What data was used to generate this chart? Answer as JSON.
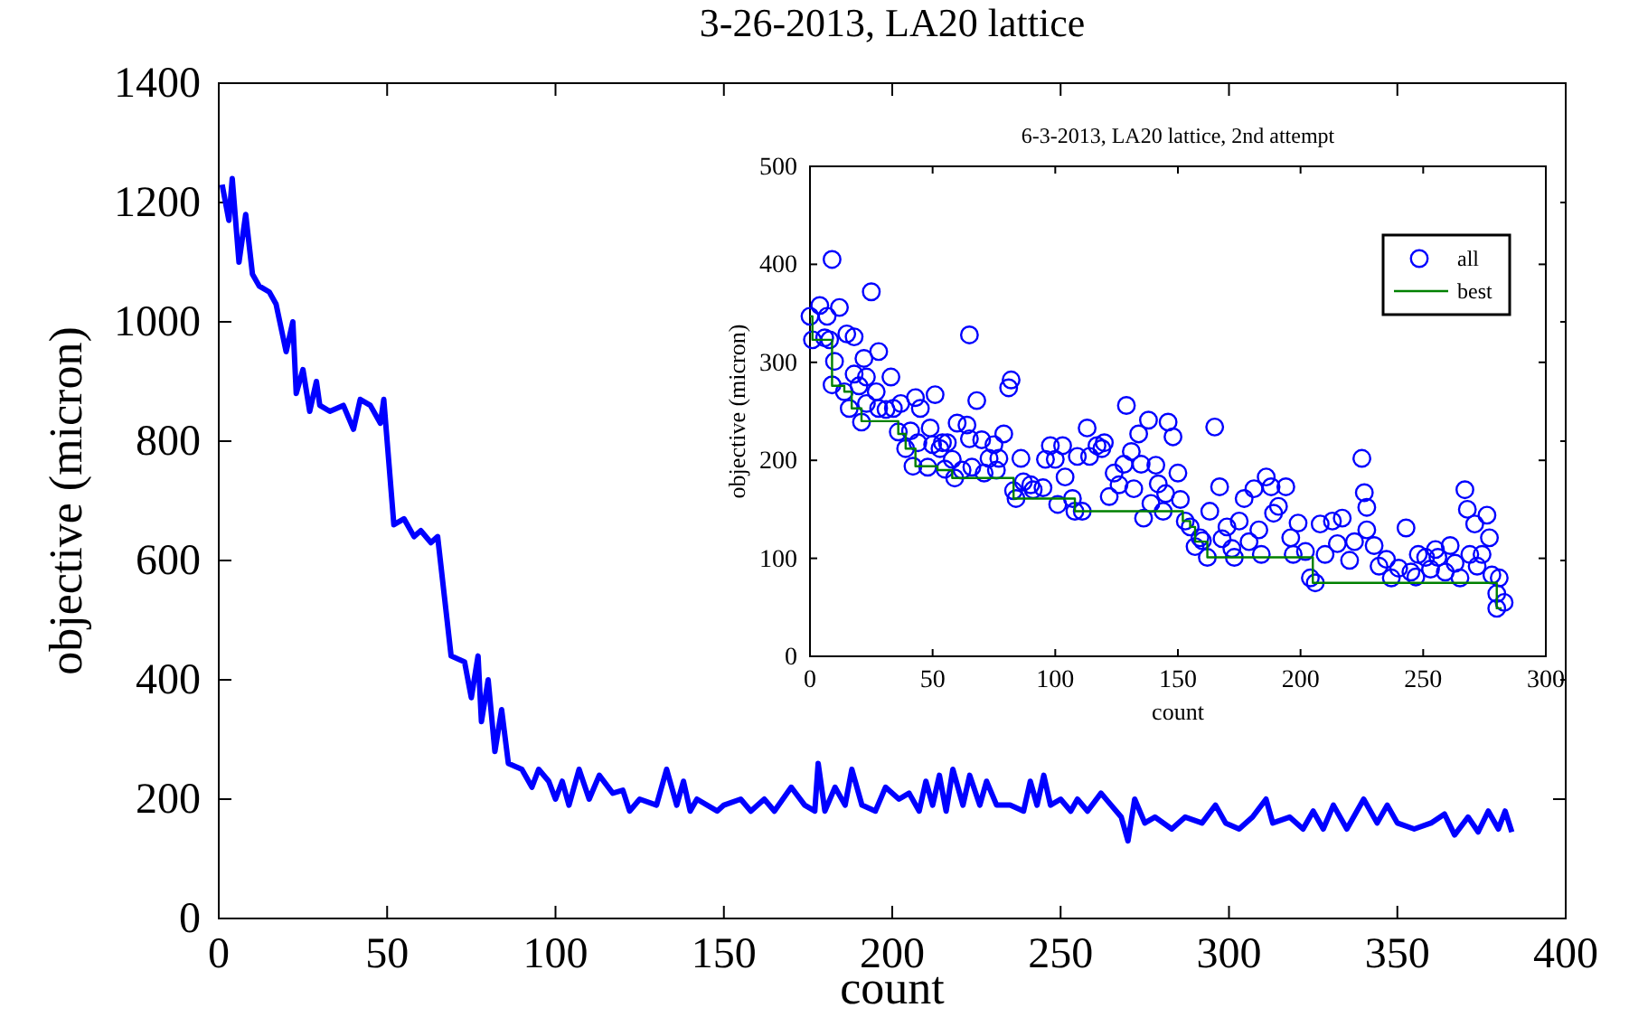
{
  "chart_data": [
    {
      "type": "line",
      "title": "3-26-2013, LA20 lattice",
      "xlabel": "count",
      "ylabel": "objective (micron)",
      "xlim": [
        0,
        400
      ],
      "ylim": [
        0,
        1400
      ],
      "xticks": [
        0,
        50,
        100,
        150,
        200,
        250,
        300,
        350,
        400
      ],
      "yticks": [
        0,
        200,
        400,
        600,
        800,
        1000,
        1200,
        1400
      ],
      "grid": false,
      "legend": false,
      "series": [
        {
          "color": "#0000ff",
          "x": [
            1,
            3,
            4,
            6,
            8,
            10,
            12,
            15,
            17,
            20,
            22,
            23,
            25,
            27,
            29,
            30,
            33,
            37,
            40,
            42,
            45,
            48,
            49,
            50,
            52,
            55,
            58,
            60,
            63,
            65,
            67,
            69,
            73,
            75,
            77,
            78,
            80,
            82,
            84,
            86,
            90,
            93,
            95,
            98,
            100,
            102,
            104,
            107,
            110,
            113,
            117,
            120,
            122,
            125,
            130,
            133,
            136,
            138,
            140,
            142,
            148,
            150,
            155,
            158,
            162,
            165,
            170,
            174,
            177,
            178,
            180,
            183,
            186,
            188,
            191,
            195,
            198,
            202,
            205,
            208,
            210,
            212,
            214,
            216,
            218,
            221,
            223,
            226,
            228,
            231,
            235,
            239,
            241,
            243,
            245,
            247,
            250,
            253,
            255,
            258,
            262,
            265,
            268,
            270,
            272,
            275,
            278,
            283,
            287,
            292,
            296,
            299,
            303,
            307,
            311,
            313,
            318,
            322,
            325,
            328,
            331,
            335,
            340,
            344,
            347,
            350,
            355,
            360,
            364,
            367,
            371,
            374,
            377,
            380,
            382,
            384
          ],
          "values": [
            1230,
            1170,
            1240,
            1100,
            1180,
            1080,
            1060,
            1050,
            1030,
            950,
            1000,
            880,
            920,
            850,
            900,
            860,
            850,
            860,
            820,
            870,
            860,
            830,
            870,
            800,
            660,
            670,
            640,
            650,
            630,
            640,
            540,
            440,
            430,
            370,
            440,
            330,
            400,
            280,
            350,
            260,
            250,
            220,
            250,
            230,
            200,
            230,
            190,
            250,
            200,
            240,
            210,
            215,
            180,
            200,
            190,
            250,
            190,
            230,
            180,
            200,
            180,
            190,
            200,
            180,
            200,
            180,
            220,
            190,
            180,
            260,
            180,
            220,
            190,
            250,
            190,
            180,
            220,
            200,
            210,
            180,
            230,
            190,
            240,
            180,
            250,
            190,
            240,
            190,
            230,
            190,
            190,
            180,
            230,
            190,
            240,
            190,
            200,
            180,
            200,
            180,
            210,
            190,
            170,
            130,
            200,
            160,
            170,
            150,
            170,
            160,
            190,
            160,
            150,
            170,
            200,
            160,
            170,
            150,
            180,
            150,
            190,
            150,
            200,
            160,
            190,
            160,
            150,
            160,
            175,
            140,
            170,
            145,
            180,
            150,
            180,
            145
          ]
        }
      ]
    },
    {
      "type": "scatter",
      "title": "6-3-2013, LA20 lattice, 2nd attempt",
      "xlabel": "count",
      "ylabel": "objective (micron)",
      "xlim": [
        0,
        300
      ],
      "ylim": [
        0,
        500
      ],
      "xticks": [
        0,
        50,
        100,
        150,
        200,
        250,
        300
      ],
      "yticks": [
        0,
        100,
        200,
        300,
        400,
        500
      ],
      "grid": false,
      "legend": "top right",
      "series": [
        {
          "name": "all",
          "marker": "circle",
          "color": "#0000ff",
          "x": [
            0,
            1,
            4,
            6,
            7,
            8,
            9,
            9,
            10,
            12,
            14,
            15,
            16,
            18,
            18,
            20,
            21,
            22,
            23,
            23,
            25,
            27,
            28,
            28,
            31,
            33,
            34,
            36,
            37,
            39,
            41,
            42,
            43,
            44,
            45,
            48,
            49,
            50,
            51,
            53,
            54,
            55,
            56,
            58,
            59,
            60,
            62,
            64,
            65,
            65,
            66,
            68,
            70,
            71,
            73,
            75,
            76,
            77,
            79,
            81,
            82,
            83,
            84,
            86,
            87,
            90,
            91,
            95,
            96,
            98,
            100,
            101,
            103,
            104,
            107,
            108,
            109,
            111,
            113,
            114,
            117,
            119,
            120,
            122,
            124,
            126,
            128,
            129,
            131,
            132,
            134,
            135,
            136,
            138,
            139,
            141,
            142,
            144,
            145,
            146,
            148,
            150,
            151,
            153,
            155,
            157,
            159,
            160,
            162,
            163,
            165,
            167,
            168,
            170,
            172,
            173,
            175,
            177,
            179,
            181,
            183,
            184,
            186,
            188,
            189,
            191,
            194,
            196,
            197,
            199,
            202,
            204,
            206,
            208,
            210,
            213,
            215,
            217,
            220,
            222,
            225,
            226,
            227,
            227,
            230,
            232,
            235,
            237,
            240,
            243,
            245,
            247,
            248,
            251,
            253,
            255,
            256,
            259,
            261,
            263,
            265,
            267,
            268,
            269,
            271,
            272,
            274,
            276,
            277,
            278,
            280,
            280,
            281,
            283
          ],
          "values": [
            347,
            323,
            358,
            325,
            347,
            323,
            405,
            277,
            301,
            356,
            270,
            329,
            253,
            326,
            288,
            276,
            239,
            304,
            285,
            258,
            372,
            270,
            311,
            253,
            252,
            285,
            253,
            229,
            258,
            212,
            230,
            194,
            264,
            218,
            253,
            193,
            233,
            216,
            267,
            212,
            218,
            191,
            218,
            201,
            182,
            238,
            190,
            236,
            222,
            328,
            193,
            261,
            221,
            187,
            202,
            216,
            190,
            202,
            227,
            274,
            282,
            169,
            161,
            202,
            178,
            175,
            170,
            172,
            201,
            215,
            201,
            155,
            215,
            183,
            161,
            148,
            204,
            148,
            233,
            204,
            215,
            212,
            218,
            163,
            187,
            175,
            196,
            256,
            209,
            171,
            227,
            196,
            141,
            241,
            156,
            195,
            176,
            148,
            166,
            239,
            224,
            187,
            160,
            138,
            132,
            112,
            121,
            118,
            101,
            148,
            234,
            173,
            120,
            132,
            110,
            101,
            138,
            161,
            117,
            171,
            129,
            104,
            183,
            173,
            146,
            153,
            173,
            121,
            104,
            136,
            107,
            80,
            75,
            135,
            104,
            138,
            115,
            141,
            98,
            117,
            202,
            167,
            152,
            129,
            113,
            92,
            99,
            80,
            90,
            131,
            86,
            81,
            104,
            101,
            89,
            109,
            101,
            86,
            113,
            95,
            80,
            170,
            150,
            104,
            135,
            92,
            104,
            144,
            121,
            83,
            64,
            49,
            80,
            55
          ]
        },
        {
          "name": "best",
          "type": "step",
          "color": "#008000",
          "x": [
            0,
            1,
            9,
            14,
            17,
            21,
            36,
            39,
            43,
            52,
            58,
            83,
            108,
            152,
            155,
            157,
            162,
            205,
            278,
            280,
            282
          ],
          "values": [
            347,
            323,
            276,
            270,
            253,
            240,
            227,
            212,
            194,
            190,
            182,
            161,
            148,
            138,
            132,
            117,
            101,
            75,
            75,
            49,
            49
          ]
        }
      ]
    }
  ]
}
